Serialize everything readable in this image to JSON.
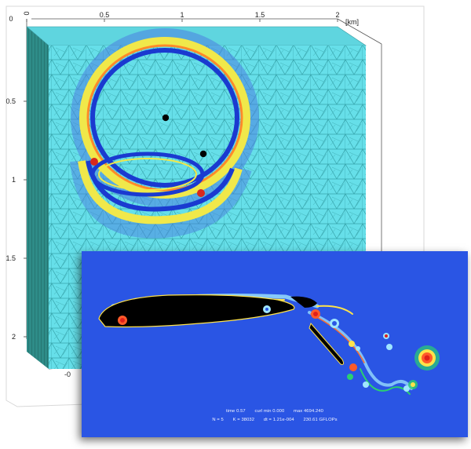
{
  "mesh_plot": {
    "x_ticks": [
      "0",
      "0.5",
      "1",
      "1.5",
      "2"
    ],
    "x_unit": "[km]",
    "y_ticks": [
      "0.5",
      "1",
      "1.5",
      "2"
    ],
    "y_zero": "0",
    "bottom_partial_tick": "-0",
    "colors": {
      "mesh_background": "#66dfe9",
      "mesh_lines": "#2a8a90",
      "wave_outer": "#ffd23a",
      "wave_inner": "#1432c8",
      "side_face": "#2f8f8c"
    },
    "source_markers": 2
  },
  "flow_plot": {
    "background": "#2a55e4",
    "stats_line_1": {
      "time": "time  0.57",
      "curl_min": "curl min  0.000",
      "curl_max": "max 4694.240"
    },
    "stats_line_2": {
      "n": "N = 5",
      "k": "K = 38032",
      "dt": "dt = 1.21e-004",
      "gflops": "230.61 GFLOPs"
    }
  }
}
